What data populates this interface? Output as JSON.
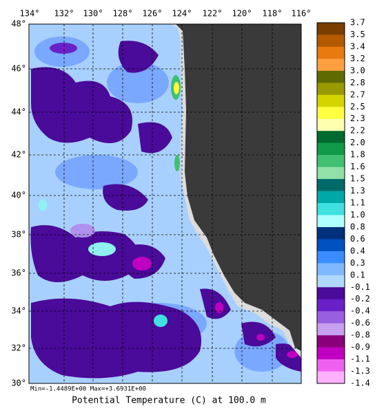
{
  "title": "Potential Temperature (C) at 100.0 m",
  "stats": "Min=-1.4489E+00  Max=+3.6931E+00",
  "longitude_labels": [
    "134°",
    "132°",
    "130°",
    "128°",
    "126°",
    "124°",
    "122°",
    "120°",
    "118°",
    "116°"
  ],
  "latitude_labels": [
    "48°",
    "46°",
    "44°",
    "42°",
    "40°",
    "38°",
    "36°",
    "34°",
    "32°",
    "30°"
  ],
  "colorbar": {
    "labels": [
      "3.7",
      "3.5",
      "3.4",
      "3.2",
      "3.0",
      "2.8",
      "2.7",
      "2.5",
      "2.3",
      "2.2",
      "2.0",
      "1.8",
      "1.6",
      "1.5",
      "1.3",
      "1.1",
      "1.0",
      "0.8",
      "0.6",
      "0.4",
      "0.3",
      "0.1",
      "-0.1",
      "-0.2",
      "-0.4",
      "-0.6",
      "-0.8",
      "-0.9",
      "-1.1",
      "-1.3",
      "-1.4"
    ],
    "colors": [
      "#7a3d00",
      "#b35900",
      "#e87a10",
      "#ffa040",
      "#5f6b00",
      "#9a9a00",
      "#d4d400",
      "#ffff40",
      "#ffffb0",
      "#006a30",
      "#109a48",
      "#40c070",
      "#90e0a8",
      "#006a6a",
      "#00a8a8",
      "#40e0e0",
      "#b0ffff",
      "#00307a",
      "#0050c0",
      "#3a8cff",
      "#80b8ff",
      "#b0d8ff",
      "#4a0a9a",
      "#6a20c8",
      "#9860e0",
      "#c8a0f0",
      "#8a007a",
      "#c000c0",
      "#f060f0",
      "#ffb0ff"
    ]
  }
}
